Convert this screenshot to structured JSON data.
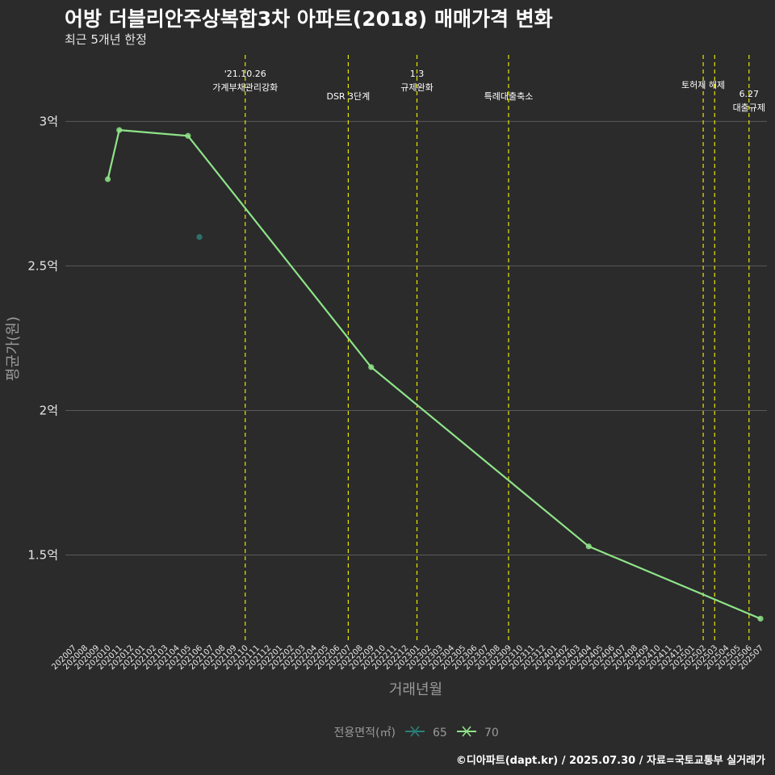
{
  "header": {
    "title": "어방 더블리안주상복합3차 아파트(2018) 매매가격 변화",
    "subtitle": "최근 5개년 한정"
  },
  "footer": {
    "credit": "©디아파트(dapt.kr) / 2025.07.30 / 자료=국토교통부 실거래가"
  },
  "colors": {
    "background": "#2b2b2b",
    "grid": "#5a5a5a",
    "event_line": "#e6e600",
    "series_65": "#2a7f78",
    "series_70": "#8fe388",
    "text": "#e6e6e6",
    "muted": "#9a9a9a"
  },
  "chart_data": {
    "type": "line",
    "xlabel": "거래년월",
    "ylabel": "평균가(원)",
    "ylim": [
      1.2,
      3.23
    ],
    "yticks": [
      {
        "value": 1.5,
        "label": "1.5억"
      },
      {
        "value": 2.0,
        "label": "2억"
      },
      {
        "value": 2.5,
        "label": "2.5억"
      },
      {
        "value": 3.0,
        "label": "3억"
      }
    ],
    "categories": [
      "202007",
      "202008",
      "202009",
      "202010",
      "202011",
      "202012",
      "202101",
      "202102",
      "202103",
      "202104",
      "202105",
      "202106",
      "202107",
      "202108",
      "202109",
      "202110",
      "202111",
      "202112",
      "202201",
      "202202",
      "202203",
      "202204",
      "202205",
      "202206",
      "202207",
      "202208",
      "202209",
      "202210",
      "202211",
      "202212",
      "202301",
      "202302",
      "202303",
      "202304",
      "202305",
      "202306",
      "202307",
      "202308",
      "202309",
      "202310",
      "202311",
      "202312",
      "202401",
      "202402",
      "202403",
      "202404",
      "202405",
      "202406",
      "202407",
      "202408",
      "202409",
      "202410",
      "202411",
      "202412",
      "202501",
      "202502",
      "202503",
      "202504",
      "202505",
      "202506",
      "202507"
    ],
    "legend": {
      "title": "전용면적(㎡)",
      "position": "bottom",
      "items": [
        {
          "name": "65",
          "color": "#2a7f78"
        },
        {
          "name": "70",
          "color": "#8fe388"
        }
      ]
    },
    "series": [
      {
        "name": "65",
        "color": "#2a7f78",
        "line": false,
        "points": [
          {
            "x": "202106",
            "y": 2.6
          }
        ]
      },
      {
        "name": "70",
        "color": "#8fe388",
        "line": true,
        "points": [
          {
            "x": "202010",
            "y": 2.8
          },
          {
            "x": "202011",
            "y": 2.97
          },
          {
            "x": "202105",
            "y": 2.95
          },
          {
            "x": "202209",
            "y": 2.15
          },
          {
            "x": "202404",
            "y": 1.53
          },
          {
            "x": "202507",
            "y": 1.28
          }
        ]
      }
    ],
    "events": [
      {
        "x": "202110",
        "lines": [
          "'21.10.26",
          "가계부채관리강화"
        ],
        "level": 0
      },
      {
        "x": "202207",
        "lines": [
          "DSR 3단계"
        ],
        "level": 2
      },
      {
        "x": "202301",
        "lines": [
          "1.3",
          "규제완화"
        ],
        "level": 0
      },
      {
        "x": "202309",
        "lines": [
          "특례대출축소"
        ],
        "level": 2
      },
      {
        "x": "202502",
        "lines": [
          "토허제 해제"
        ],
        "level": 1
      },
      {
        "x": "202503",
        "lines": [],
        "level": 1
      },
      {
        "x": "202506",
        "lines": [
          "6.27",
          "대출규제"
        ],
        "level": 1.8
      }
    ]
  }
}
